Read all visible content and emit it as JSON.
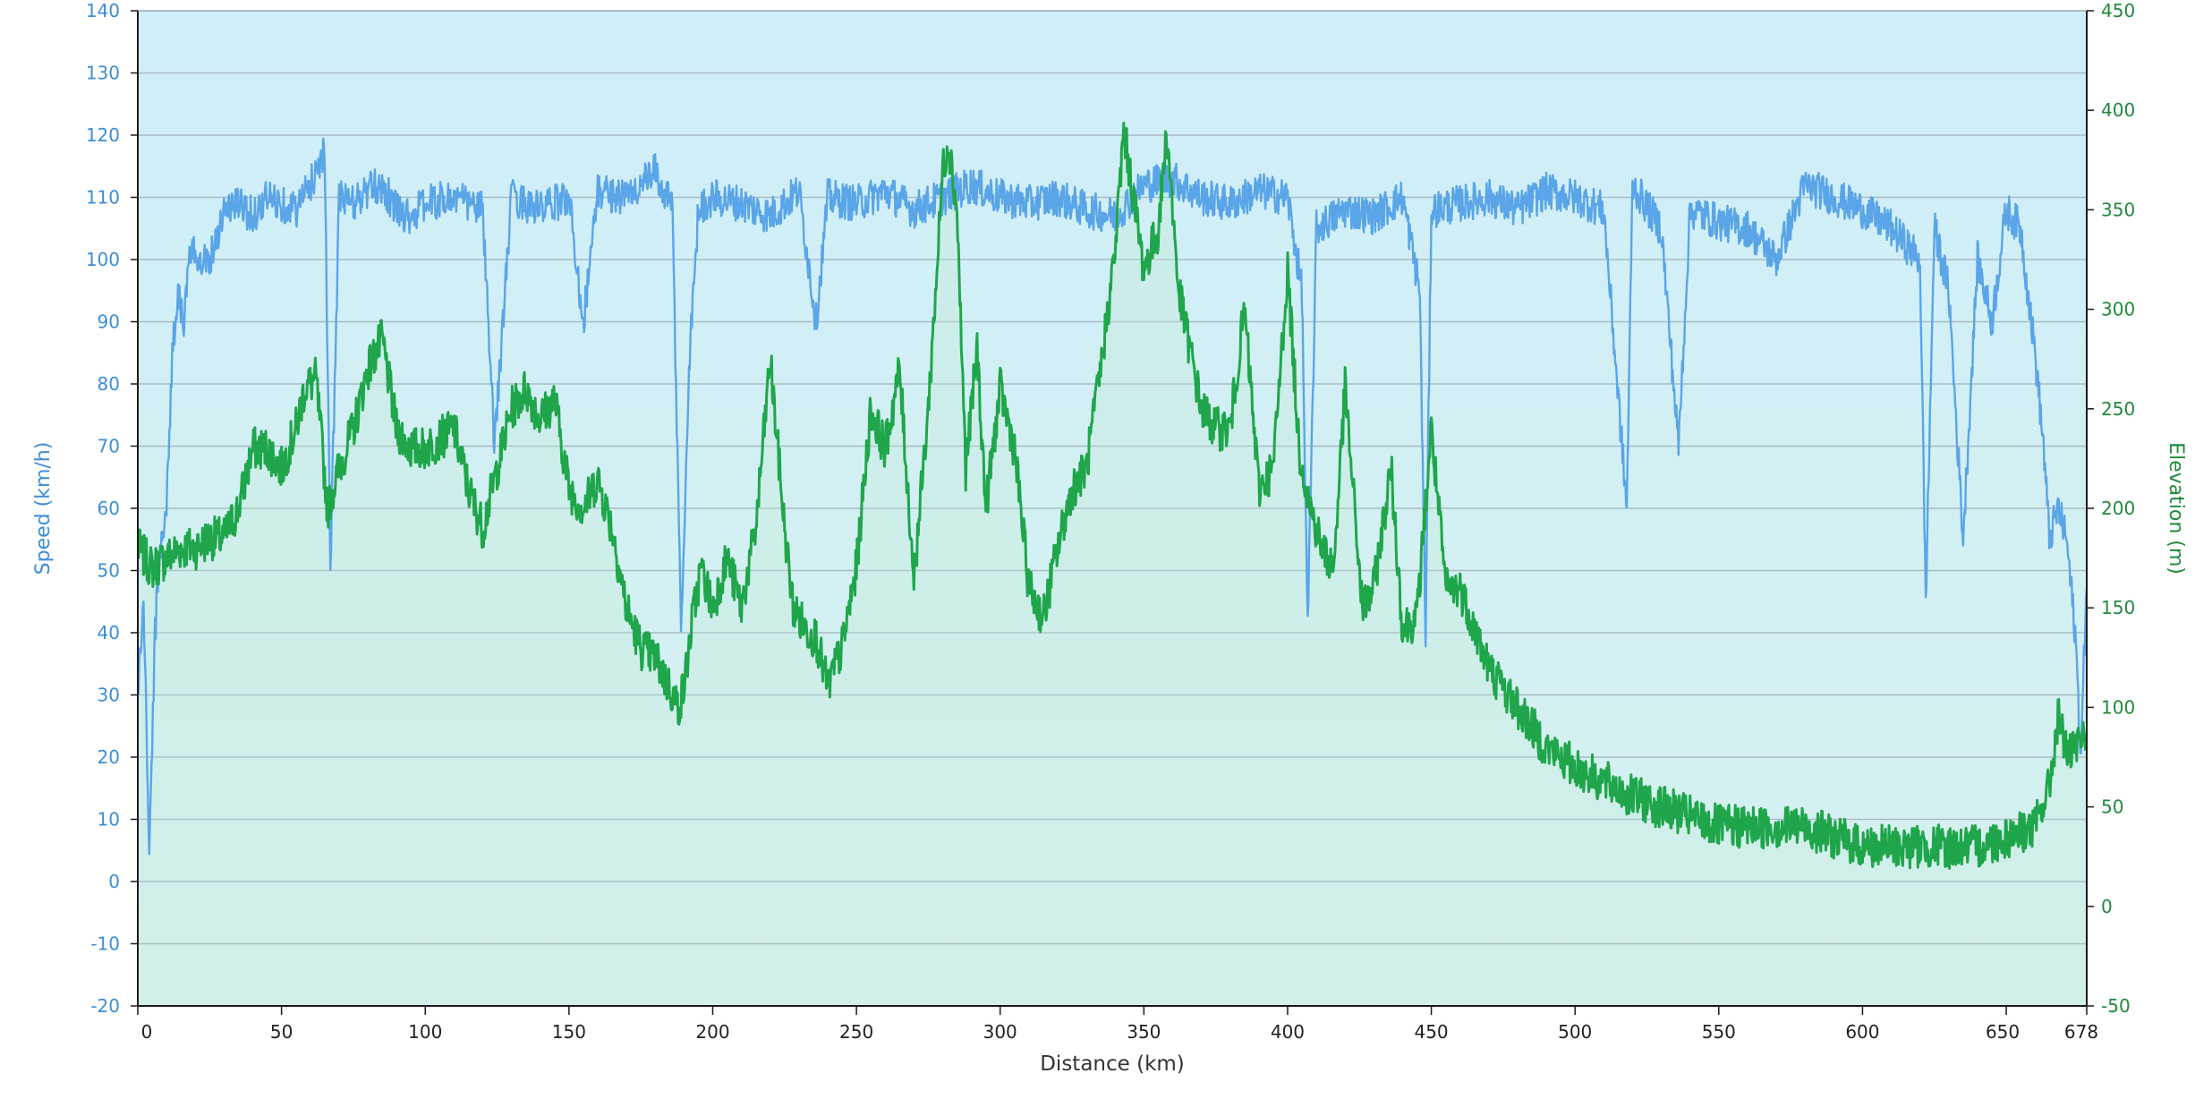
{
  "chart_data": {
    "type": "line",
    "xlabel": "Distance  (km)",
    "ylabel_left": "Speed (km/h)",
    "ylabel_right": "Elevation (m)",
    "xlim": [
      0,
      678
    ],
    "ylim_left": [
      -20,
      140
    ],
    "ylim_right": [
      -50,
      450
    ],
    "x_ticks": [
      0,
      50,
      100,
      150,
      200,
      250,
      300,
      350,
      400,
      450,
      500,
      550,
      600,
      650,
      678
    ],
    "y_ticks_left": [
      -20,
      -10,
      0,
      10,
      20,
      30,
      40,
      50,
      60,
      70,
      80,
      90,
      100,
      110,
      120,
      130,
      140
    ],
    "y_ticks_right": [
      -50,
      0,
      50,
      100,
      150,
      200,
      250,
      300,
      350,
      400,
      450
    ],
    "grid": true,
    "legend": "none",
    "colors": {
      "speed": "#5aa5e8",
      "elevation": "#1fa64b",
      "left_axis": "#3c8ed6",
      "right_axis": "#1f8a3c",
      "plot_bg_top": "#cfeef9",
      "plot_bg_bottom": "#d6f1ee",
      "gridline": "#a9bcc5"
    },
    "series": [
      {
        "axis": "left",
        "x": [
          0,
          2,
          4,
          6,
          8,
          10,
          12,
          14,
          16,
          18,
          20,
          25,
          30,
          35,
          40,
          45,
          50,
          55,
          60,
          65,
          67,
          70,
          75,
          80,
          85,
          90,
          95,
          100,
          110,
          120,
          124,
          130,
          140,
          150,
          155,
          160,
          170,
          180,
          186,
          189,
          192,
          195,
          200,
          210,
          220,
          230,
          236,
          240,
          250,
          260,
          270,
          280,
          290,
          300,
          310,
          320,
          330,
          340,
          350,
          360,
          370,
          380,
          390,
          400,
          405,
          407,
          410,
          420,
          430,
          440,
          446,
          448,
          450,
          460,
          470,
          480,
          490,
          500,
          510,
          518,
          520,
          530,
          536,
          540,
          550,
          560,
          570,
          580,
          590,
          600,
          610,
          620,
          622,
          625,
          630,
          635,
          640,
          645,
          650,
          655,
          660,
          663,
          665,
          668,
          671,
          674,
          676,
          678
        ],
        "values": [
          30,
          45,
          5,
          40,
          55,
          60,
          85,
          95,
          90,
          100,
          101,
          100,
          108,
          109,
          107,
          110,
          109,
          108,
          112,
          118,
          50,
          110,
          109,
          111,
          112,
          108,
          107,
          109,
          110,
          108,
          70,
          110,
          108,
          110,
          90,
          111,
          110,
          114,
          108,
          40,
          85,
          108,
          110,
          109,
          107,
          111,
          90,
          110,
          109,
          111,
          108,
          110,
          112,
          110,
          109,
          110,
          108,
          107,
          112,
          113,
          110,
          109,
          111,
          110,
          95,
          40,
          105,
          108,
          107,
          110,
          95,
          40,
          108,
          109,
          110,
          108,
          111,
          110,
          108,
          60,
          112,
          105,
          70,
          108,
          106,
          105,
          100,
          112,
          110,
          108,
          105,
          100,
          45,
          105,
          95,
          55,
          100,
          90,
          108,
          105,
          85,
          70,
          55,
          60,
          55,
          40,
          20,
          50
        ]
      },
      {
        "axis": "right",
        "x": [
          0,
          5,
          10,
          15,
          20,
          25,
          30,
          35,
          40,
          45,
          50,
          55,
          58,
          62,
          66,
          70,
          75,
          80,
          85,
          90,
          95,
          100,
          110,
          115,
          120,
          125,
          130,
          135,
          140,
          145,
          150,
          155,
          160,
          165,
          170,
          175,
          180,
          185,
          188,
          190,
          193,
          196,
          200,
          205,
          210,
          215,
          220,
          225,
          228,
          232,
          236,
          240,
          245,
          250,
          255,
          260,
          265,
          270,
          275,
          278,
          280,
          282,
          285,
          288,
          292,
          295,
          300,
          305,
          310,
          315,
          320,
          325,
          330,
          335,
          340,
          343,
          346,
          350,
          355,
          358,
          362,
          366,
          370,
          375,
          380,
          385,
          390,
          395,
          400,
          404,
          408,
          412,
          416,
          420,
          426,
          430,
          436,
          440,
          445,
          450,
          455,
          460,
          470,
          480,
          490,
          500,
          520,
          550,
          580,
          600,
          620,
          640,
          660,
          665,
          668,
          672,
          675,
          678
        ],
        "values": [
          180,
          170,
          175,
          180,
          180,
          185,
          185,
          200,
          230,
          230,
          220,
          240,
          260,
          265,
          200,
          220,
          240,
          270,
          285,
          240,
          230,
          230,
          240,
          210,
          190,
          220,
          250,
          260,
          245,
          255,
          210,
          200,
          215,
          190,
          150,
          130,
          125,
          110,
          100,
          110,
          145,
          170,
          150,
          175,
          150,
          190,
          275,
          190,
          150,
          140,
          135,
          110,
          130,
          170,
          250,
          230,
          270,
          165,
          250,
          320,
          370,
          385,
          350,
          220,
          280,
          200,
          260,
          230,
          160,
          145,
          180,
          210,
          220,
          270,
          330,
          390,
          360,
          320,
          340,
          390,
          310,
          280,
          250,
          240,
          240,
          300,
          210,
          220,
          320,
          230,
          200,
          180,
          170,
          260,
          150,
          160,
          220,
          140,
          145,
          240,
          160,
          160,
          120,
          100,
          80,
          70,
          55,
          40,
          40,
          30,
          30,
          30,
          40,
          60,
          95,
          75,
          80,
          90
        ]
      }
    ]
  }
}
